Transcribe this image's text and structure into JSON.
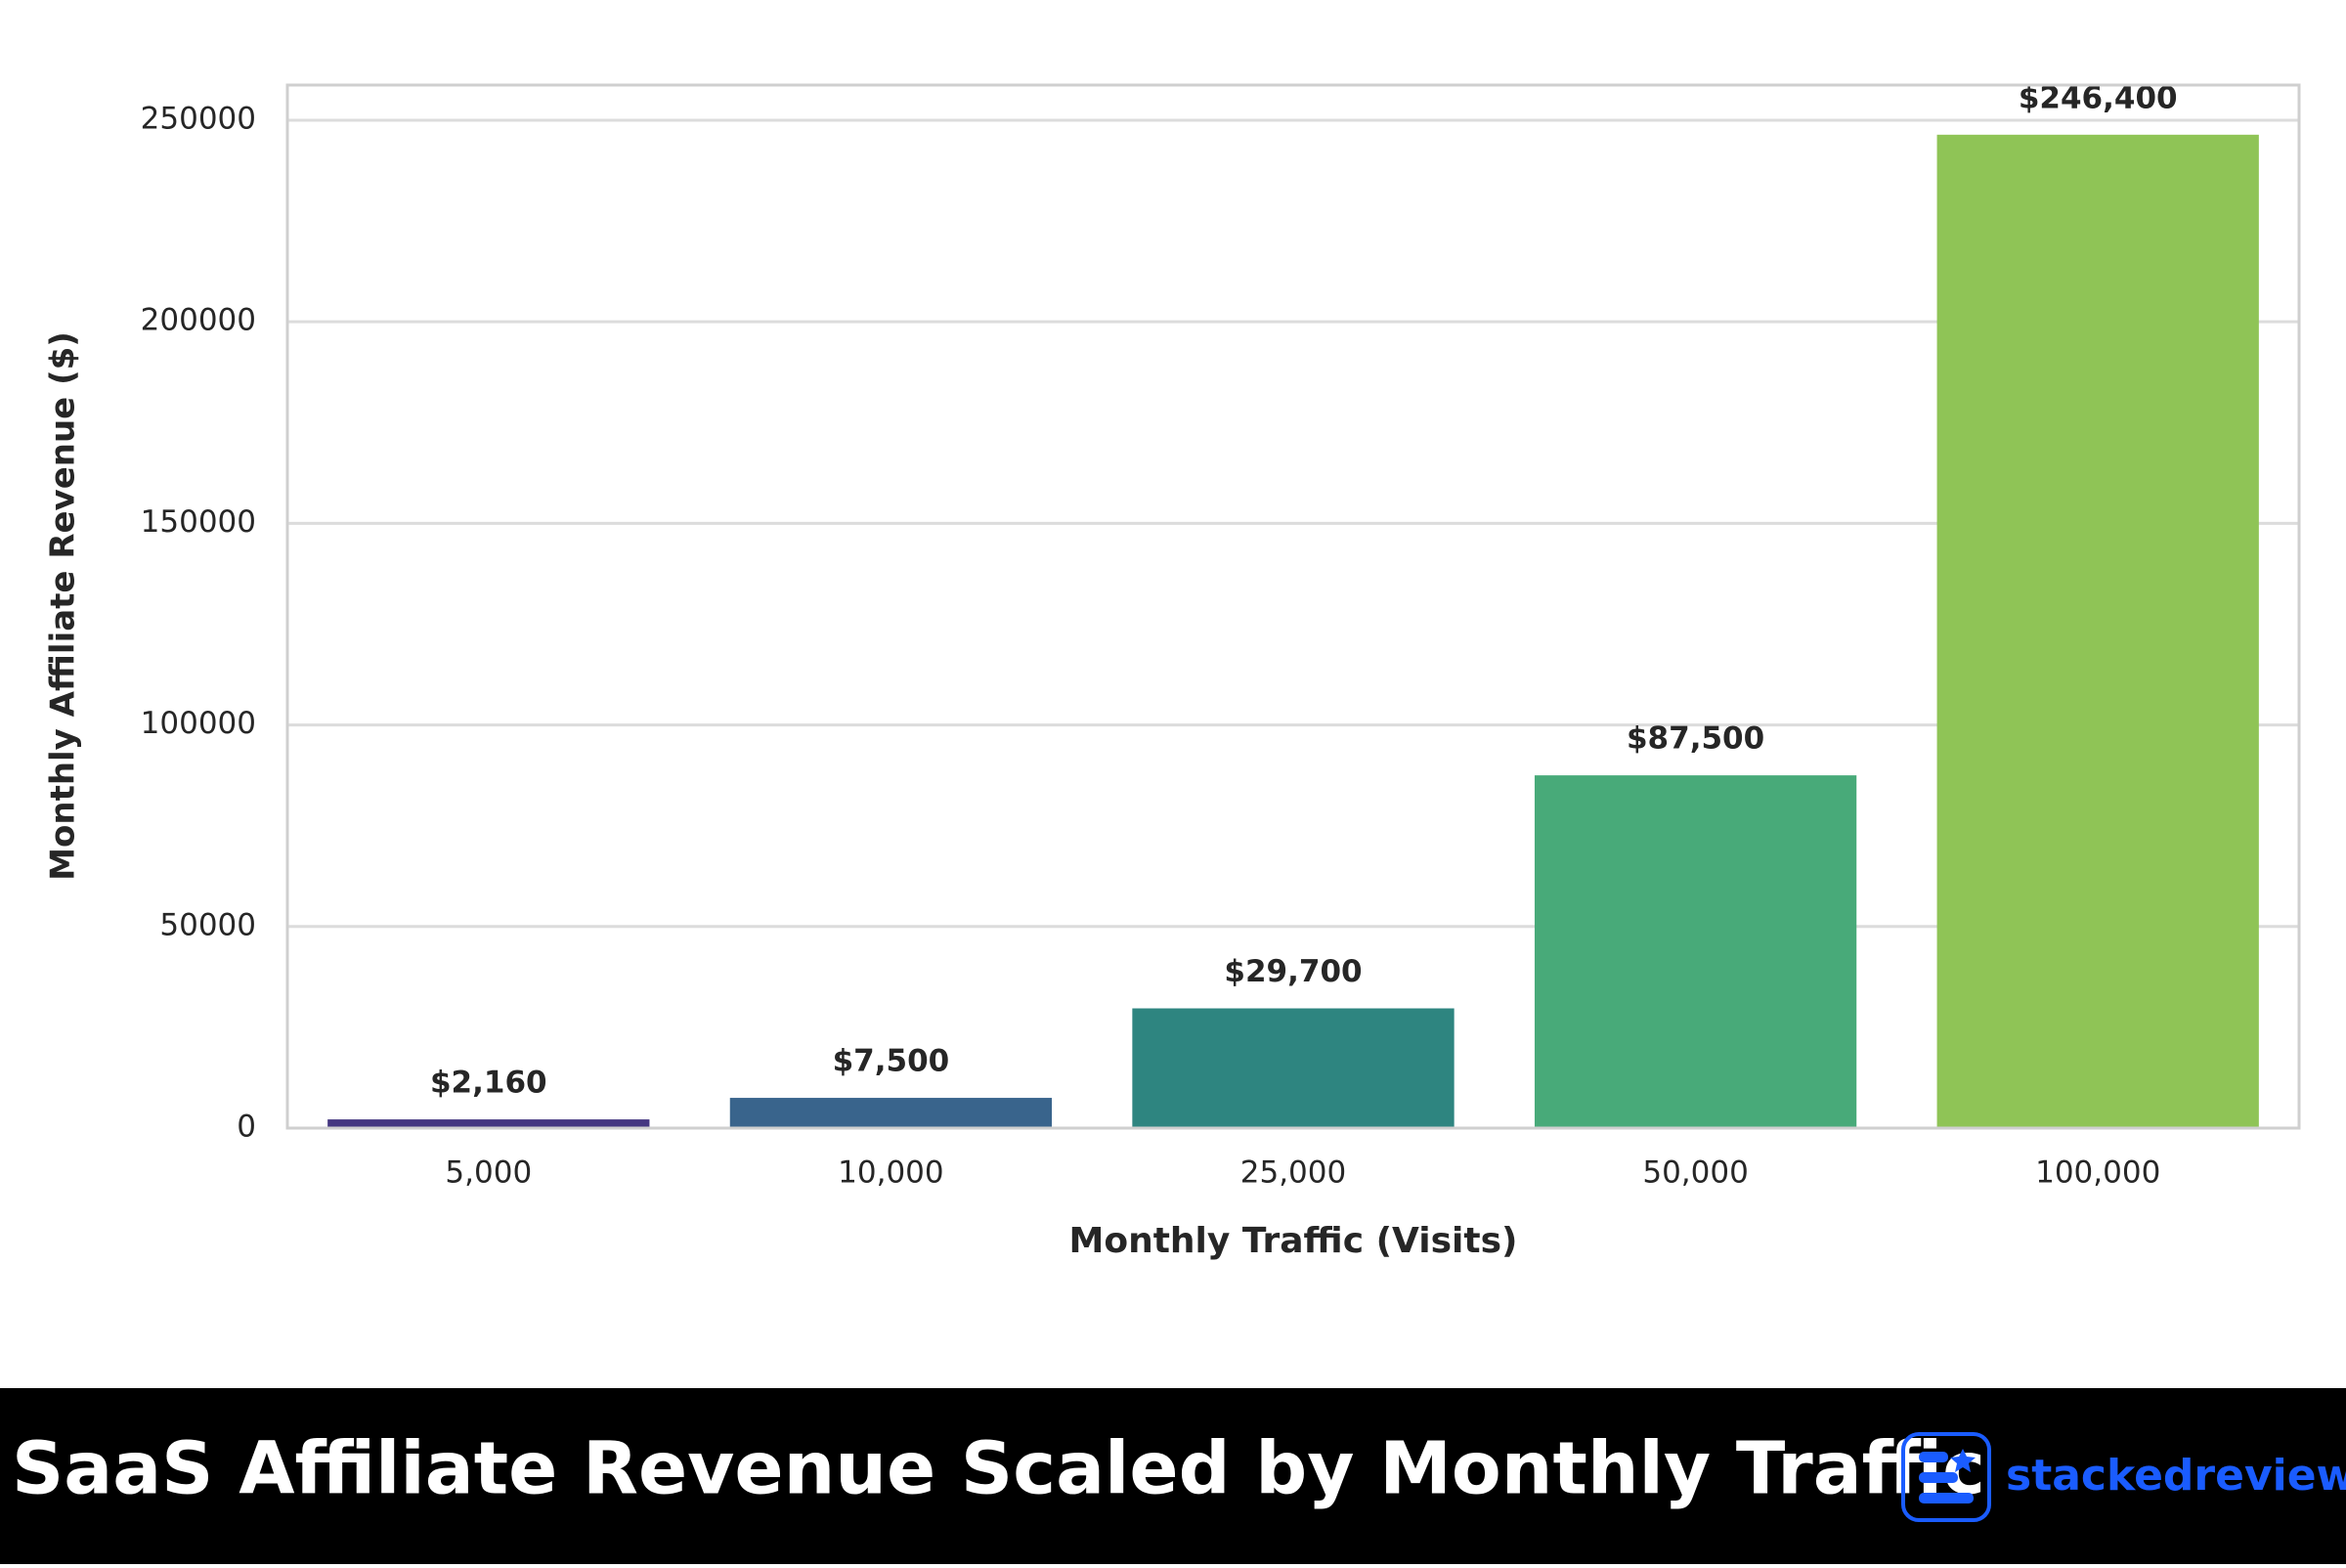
{
  "chart_data": {
    "type": "bar",
    "categories": [
      "5,000",
      "10,000",
      "25,000",
      "50,000",
      "100,000"
    ],
    "values": [
      2160,
      7500,
      29700,
      87500,
      246400
    ],
    "value_labels": [
      "$2,160",
      "$7,500",
      "$29,700",
      "$87,500",
      "$246,400"
    ],
    "colors": [
      "#453781",
      "#39648c",
      "#2e8580",
      "#48aa79",
      "#8fc456"
    ],
    "x_label": "Monthly Traffic (Visits)",
    "y_label": "Monthly Affiliate Revenue ($)",
    "ylim": [
      0,
      258720
    ],
    "yticks": [
      0,
      50000,
      100000,
      150000,
      200000,
      250000
    ],
    "grid": true
  },
  "footer": {
    "caption": "SaaS Affiliate Revenue Scaled by Monthly Traffic",
    "brand": "stackedreview"
  }
}
